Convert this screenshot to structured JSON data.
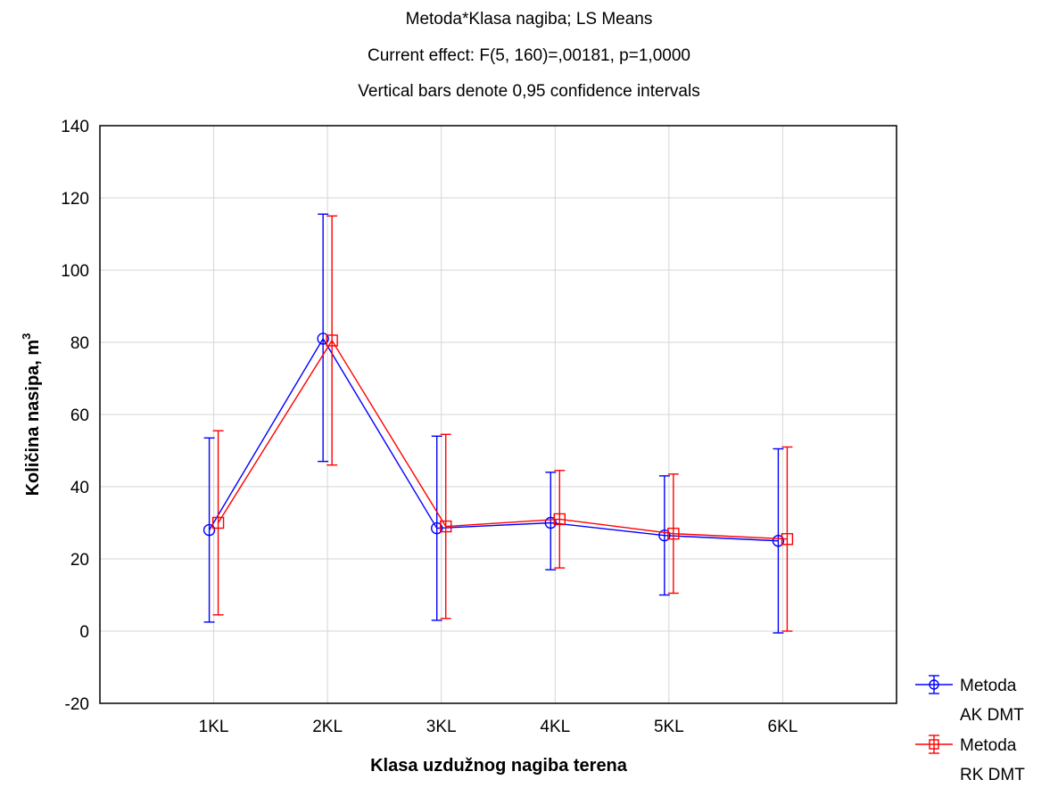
{
  "title": {
    "line1": "Metoda*Klasa nagiba; LS Means",
    "line2": "Current effect: F(5, 160)=,00181, p=1,0000",
    "line3": "Vertical bars denote 0,95 confidence intervals"
  },
  "chart_data": {
    "type": "line",
    "title": "Metoda*Klasa nagiba; LS Means",
    "subtitle": [
      "Current effect: F(5, 160)=,00181, p=1,0000",
      "Vertical bars denote 0,95 confidence intervals"
    ],
    "xlabel": "Klasa uzdužnog nagiba terena",
    "ylabel": "Količina nasipa, m",
    "ylabel_superscript": "3",
    "categories": [
      "1KL",
      "2KL",
      "3KL",
      "4KL",
      "5KL",
      "6KL"
    ],
    "ylim": [
      -20,
      140
    ],
    "yticks": [
      -20,
      0,
      20,
      40,
      60,
      80,
      100,
      120,
      140
    ],
    "grid": true,
    "legend_position": "bottom-right outside",
    "series": [
      {
        "name": "Metoda AK DMT",
        "legend_lines": [
          "Metoda",
          "AK DMT"
        ],
        "color": "#0000ff",
        "marker": "circle",
        "values": [
          28,
          81,
          28.5,
          30,
          26.5,
          25
        ],
        "ci_low": [
          2.5,
          47,
          3,
          17,
          10,
          -0.5
        ],
        "ci_high": [
          53.5,
          115.5,
          54,
          44,
          43,
          50.5
        ]
      },
      {
        "name": "Metoda RK DMT",
        "legend_lines": [
          "Metoda",
          "RK DMT"
        ],
        "color": "#ff0000",
        "marker": "square",
        "values": [
          30,
          80.5,
          29,
          31,
          27,
          25.5
        ],
        "ci_low": [
          4.5,
          46,
          3.5,
          17.5,
          10.5,
          0
        ],
        "ci_high": [
          55.5,
          115,
          54.5,
          44.5,
          43.5,
          51
        ]
      }
    ]
  }
}
